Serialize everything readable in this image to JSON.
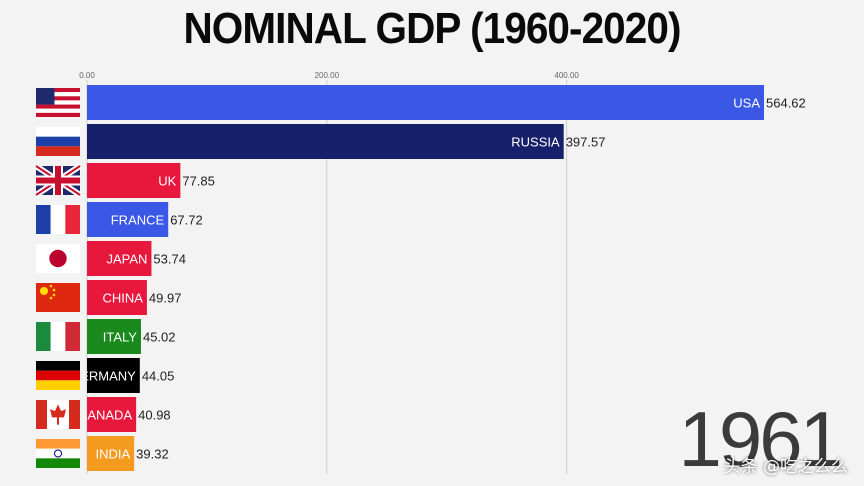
{
  "chart_data": {
    "type": "bar",
    "orientation": "horizontal",
    "title": "NOMINAL GDP (1960-2020)",
    "xlim": [
      0,
      564.62
    ],
    "ticks": [
      0,
      200,
      400
    ],
    "tick_labels": [
      "0.00",
      "200.00",
      "400.00"
    ],
    "grid": true,
    "year": "1961",
    "bars": [
      {
        "label": "USA",
        "value": 564.62,
        "value_label": "564.62",
        "color": "#3a57e6",
        "flag": "usa-flag-icon"
      },
      {
        "label": "RUSSIA",
        "value": 397.57,
        "value_label": "397.57",
        "color": "#17206b",
        "flag": "russia-flag-icon"
      },
      {
        "label": "UK",
        "value": 77.85,
        "value_label": "77.85",
        "color": "#e8183d",
        "flag": "uk-flag-icon"
      },
      {
        "label": "FRANCE",
        "value": 67.72,
        "value_label": "67.72",
        "color": "#3a57e6",
        "flag": "france-flag-icon"
      },
      {
        "label": "JAPAN",
        "value": 53.74,
        "value_label": "53.74",
        "color": "#e8183d",
        "flag": "japan-flag-icon"
      },
      {
        "label": "CHINA",
        "value": 49.97,
        "value_label": "49.97",
        "color": "#e8183d",
        "flag": "china-flag-icon"
      },
      {
        "label": "ITALY",
        "value": 45.02,
        "value_label": "45.02",
        "color": "#1a8a1e",
        "flag": "italy-flag-icon"
      },
      {
        "label": "GERMANY",
        "value": 44.05,
        "value_label": "44.05",
        "color": "#000000",
        "flag": "germany-flag-icon"
      },
      {
        "label": "CANADA",
        "value": 40.98,
        "value_label": "40.98",
        "color": "#e8183d",
        "flag": "canada-flag-icon"
      },
      {
        "label": "INDIA",
        "value": 39.32,
        "value_label": "39.32",
        "color": "#f39a1f",
        "flag": "india-flag-icon"
      }
    ]
  },
  "watermark": "头条 @吃之么么"
}
